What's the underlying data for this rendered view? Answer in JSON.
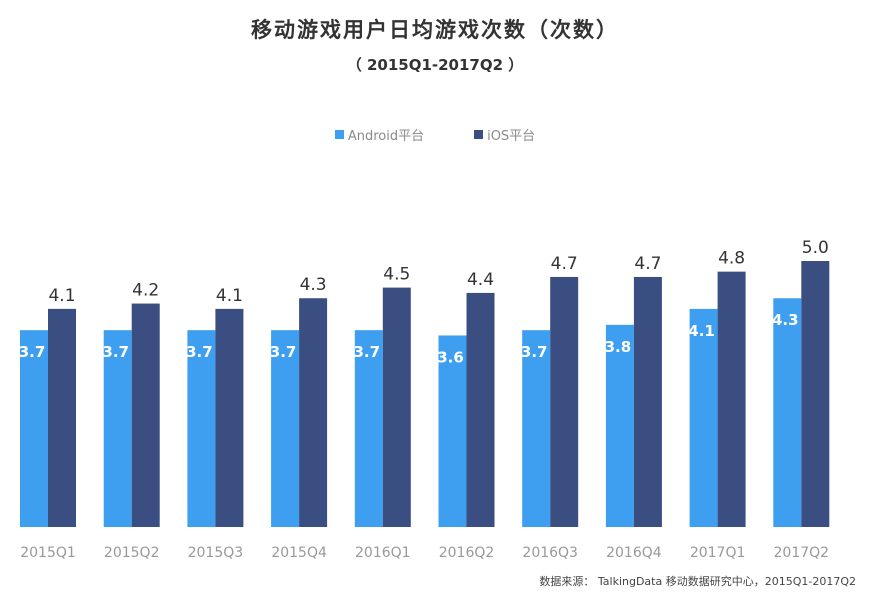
{
  "chart_data": {
    "type": "bar",
    "title": "移动游戏用户日均游戏次数（次数）",
    "subtitle": "（ 2015Q1-2017Q2 ）",
    "categories": [
      "2015Q1",
      "2015Q2",
      "2015Q3",
      "2015Q4",
      "2016Q1",
      "2016Q2",
      "2016Q3",
      "2016Q4",
      "2017Q1",
      "2017Q2"
    ],
    "series": [
      {
        "name": "Android平台",
        "color": "#3e9ff0",
        "values": [
          3.7,
          3.7,
          3.7,
          3.7,
          3.7,
          3.6,
          3.7,
          3.8,
          4.1,
          4.3
        ],
        "labels": [
          "3.7",
          "3.7",
          "3.7",
          "3.7",
          "3.7",
          "3.6",
          "3.7",
          "3.8",
          "4.1",
          "4.3"
        ]
      },
      {
        "name": "iOS平台",
        "color": "#3a4e82",
        "values": [
          4.1,
          4.2,
          4.1,
          4.3,
          4.5,
          4.4,
          4.7,
          4.7,
          4.8,
          5.0
        ],
        "labels": [
          "4.1",
          "4.2",
          "4.1",
          "4.3",
          "4.5",
          "4.4",
          "4.7",
          "4.7",
          "4.8",
          "5.0"
        ]
      }
    ],
    "ylim": [
      0,
      5.0
    ],
    "xlabel": "",
    "ylabel": "",
    "grid": false,
    "legend_position": "top-center"
  },
  "source_note": "数据来源： TalkingData 移动数据研究中心，2015Q1-2017Q2"
}
